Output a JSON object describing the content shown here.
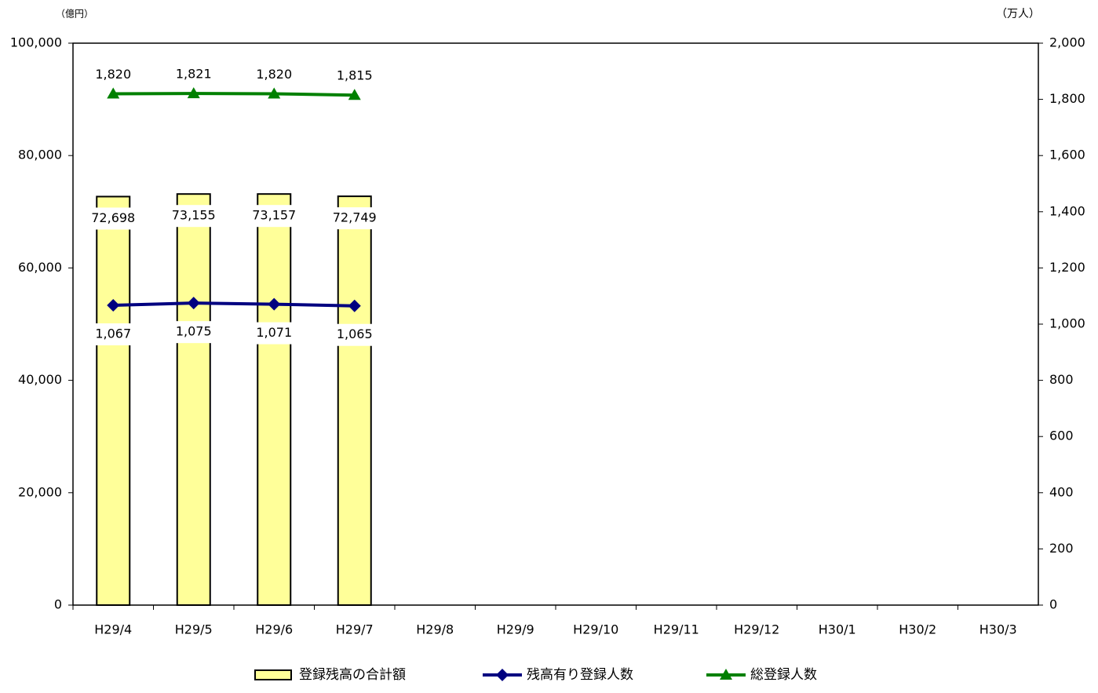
{
  "chart_data": {
    "type": "bar",
    "y_label": "（億円）",
    "y2_label": "（万人）",
    "categories": [
      "H29/4",
      "H29/5",
      "H29/6",
      "H29/7",
      "H29/8",
      "H29/9",
      "H29/10",
      "H29/11",
      "H29/12",
      "H30/1",
      "H30/2",
      "H30/3"
    ],
    "ylim": [
      0,
      100000
    ],
    "yticks": [
      {
        "value": 0,
        "label": "0"
      },
      {
        "value": 20000,
        "label": "20,000"
      },
      {
        "value": 40000,
        "label": "40,000"
      },
      {
        "value": 60000,
        "label": "60,000"
      },
      {
        "value": 80000,
        "label": "80,000"
      },
      {
        "value": 100000,
        "label": "100,000"
      }
    ],
    "y2lim": [
      0,
      2000
    ],
    "y2ticks": [
      0,
      200,
      400,
      600,
      800,
      {
        "value": 1000,
        "label": "1,000"
      },
      {
        "value": 1200,
        "label": "1,200"
      },
      {
        "value": 1400,
        "label": "1,400"
      },
      {
        "value": 1600,
        "label": "1,600"
      },
      {
        "value": 1800,
        "label": "1,800"
      },
      {
        "value": 2000,
        "label": "2,000"
      }
    ],
    "legend": "bottom",
    "series": [
      {
        "name": "登録残高の合計額",
        "type": "bar",
        "color": "#ffff99",
        "values": [
          72698,
          73155,
          73157,
          72749,
          null,
          null,
          null,
          null,
          null,
          null,
          null,
          null
        ],
        "value_labels": [
          "72,698",
          "73,155",
          "73,157",
          "72,749",
          null,
          null,
          null,
          null,
          null,
          null,
          null,
          null
        ]
      },
      {
        "name": "残高有り登録人数",
        "type": "line",
        "marker": "diamond",
        "axis": "y2",
        "color": "#000080",
        "values": [
          1067,
          1075,
          1071,
          1065,
          null,
          null,
          null,
          null,
          null,
          null,
          null,
          null
        ],
        "value_labels": [
          "1,067",
          "1,075",
          "1,071",
          "1,065",
          null,
          null,
          null,
          null,
          null,
          null,
          null,
          null
        ]
      },
      {
        "name": "総登録人数",
        "type": "line",
        "marker": "triangle",
        "axis": "y2",
        "color": "#008000",
        "values": [
          1820,
          1821,
          1820,
          1815,
          null,
          null,
          null,
          null,
          null,
          null,
          null,
          null
        ],
        "value_labels": [
          "1,820",
          "1,821",
          "1,820",
          "1,815",
          null,
          null,
          null,
          null,
          null,
          null,
          null,
          null
        ]
      }
    ]
  }
}
